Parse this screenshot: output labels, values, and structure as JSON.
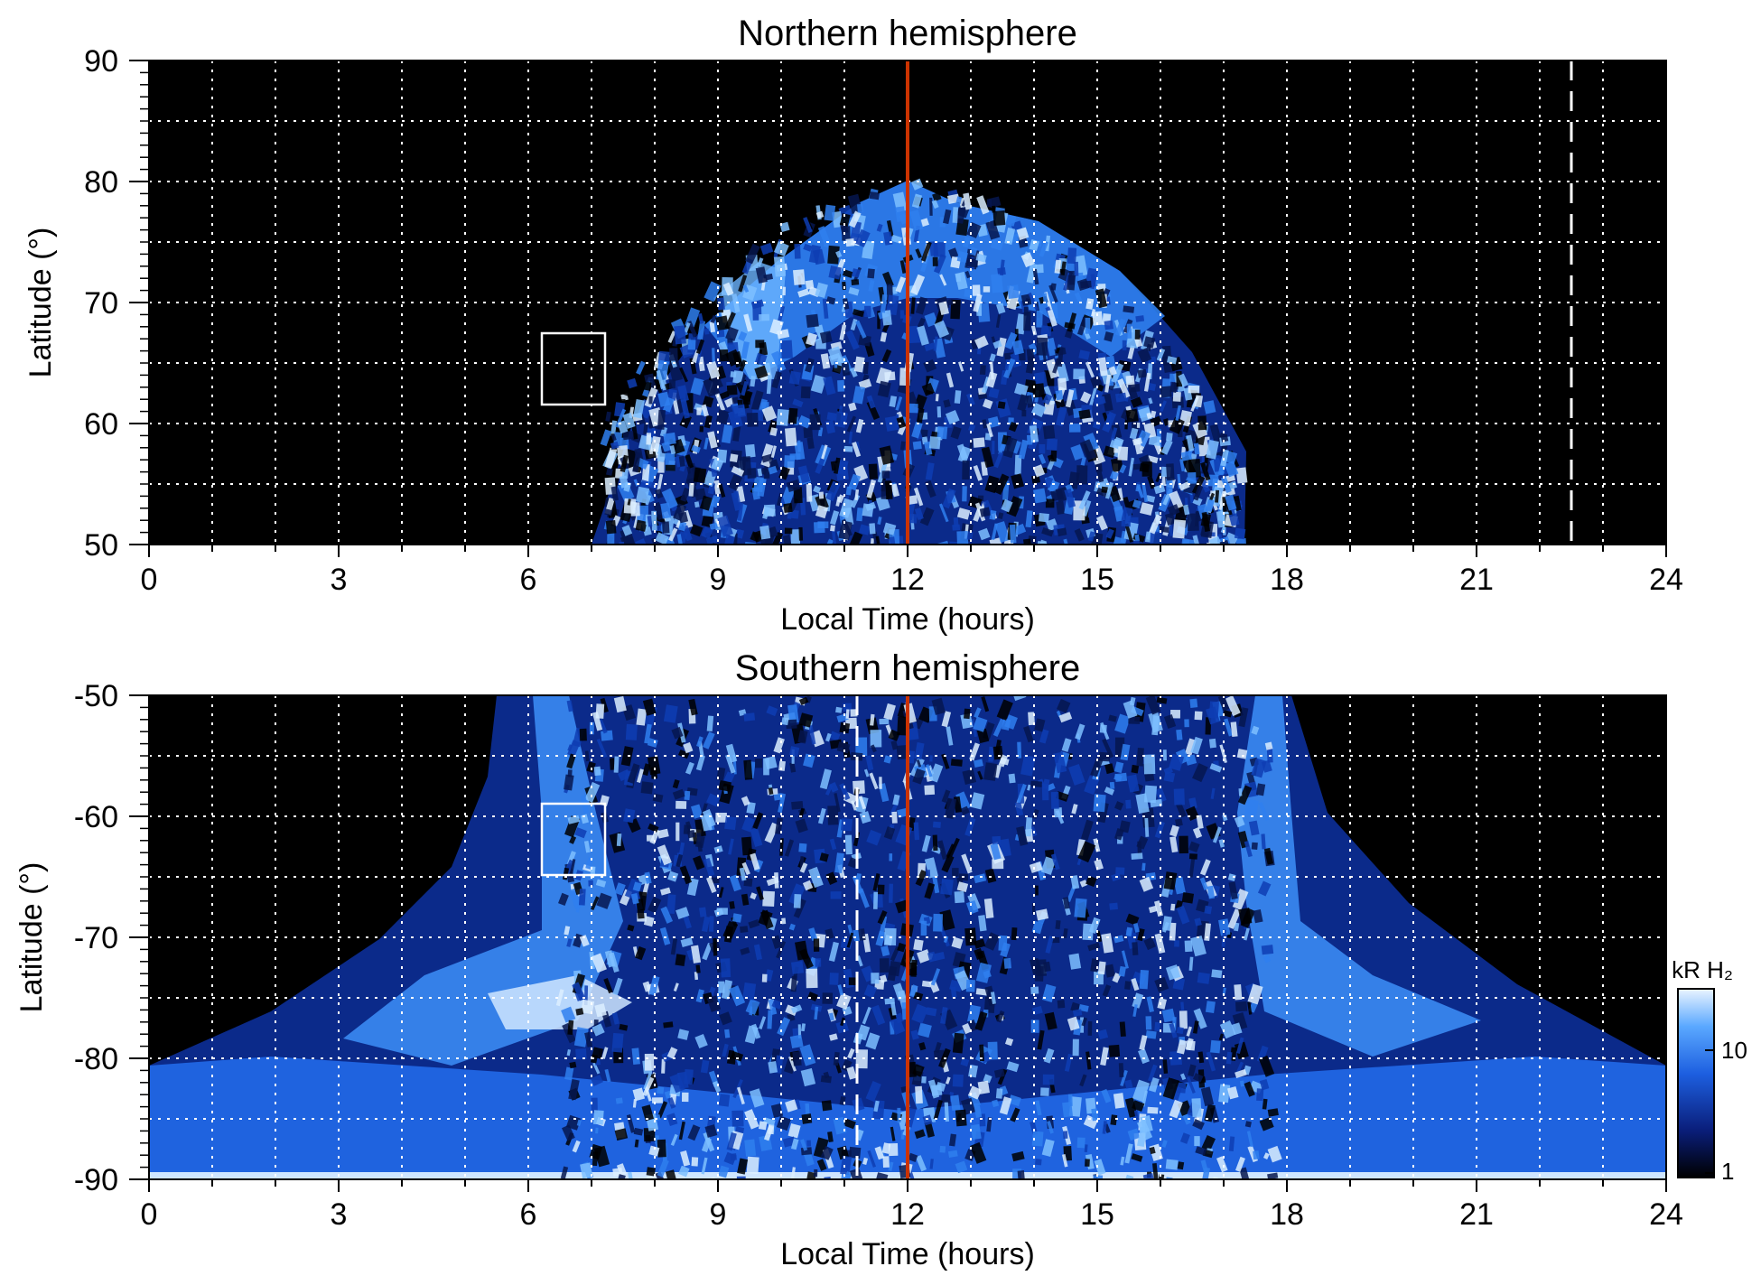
{
  "chart_data": [
    {
      "type": "heatmap",
      "title": "Northern hemisphere",
      "xlabel": "Local Time (hours)",
      "ylabel": "Latitude (°)",
      "xlim": [
        0,
        24
      ],
      "ylim": [
        50,
        90
      ],
      "x_ticks": [
        "0",
        "3",
        "6",
        "9",
        "12",
        "15",
        "18",
        "21",
        "24"
      ],
      "y_ticks": [
        "50",
        "60",
        "70",
        "80",
        "90"
      ],
      "grid": true,
      "coverage": {
        "description_points_lt_lat": [
          [
            7.0,
            50
          ],
          [
            8.0,
            65
          ],
          [
            9.5,
            75
          ],
          [
            11.0,
            79
          ],
          [
            12.0,
            80
          ],
          [
            13.0,
            79
          ],
          [
            14.5,
            77
          ],
          [
            16.0,
            68
          ],
          [
            17.3,
            50
          ]
        ]
      },
      "bright_arc": {
        "lt_start": 8.5,
        "lt_end": 16.5,
        "lat_peak": 72
      },
      "red_line_lt": 12,
      "dashed_line_lt": 22.5,
      "box": {
        "lt": [
          6.2,
          7.2
        ],
        "lat": [
          61.5,
          67.5
        ]
      }
    },
    {
      "type": "heatmap",
      "title": "Southern hemisphere",
      "xlabel": "Local Time (hours)",
      "ylabel": "Latitude (°)",
      "xlim": [
        0,
        24
      ],
      "ylim": [
        -90,
        -50
      ],
      "x_ticks": [
        "0",
        "3",
        "6",
        "9",
        "12",
        "15",
        "18",
        "21",
        "24"
      ],
      "y_ticks": [
        "-50",
        "-60",
        "-70",
        "-80",
        "-90"
      ],
      "grid": true,
      "bright_oval": {
        "lt_dawn": 6.5,
        "lt_dusk": 17.8,
        "lat_low": -50,
        "lat_pole": -90
      },
      "red_line_lt": 12,
      "dashed_line_lt": 11.25,
      "box": {
        "lt": [
          6.2,
          7.2
        ],
        "lat": [
          -65,
          -59
        ]
      }
    }
  ],
  "colorbar": {
    "label": "kR H₂",
    "ticks": [
      "1",
      "10"
    ],
    "scale": "log",
    "colors": [
      "#000000",
      "#0a1e7a",
      "#1d5fe0",
      "#5aa8ff",
      "#eaf4ff"
    ]
  },
  "colors": {
    "red_line": "#cc3300",
    "grid": "#ffffff",
    "background": "#000000"
  }
}
